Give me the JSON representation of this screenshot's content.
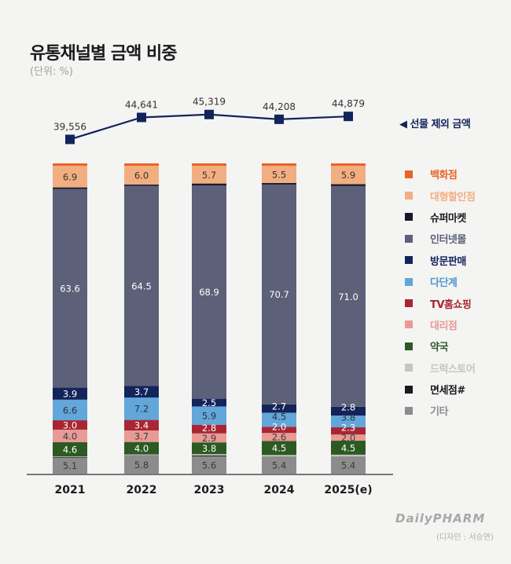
{
  "chart_data": {
    "type": "bar",
    "stacked": true,
    "title": "유통채널별 금액 비중",
    "subtitle": "(단위: %)",
    "categories": [
      "2021",
      "2022",
      "2023",
      "2024",
      "2025(e)"
    ],
    "series": [
      {
        "name": "기타",
        "color": "#8c8c8c",
        "label_color": "#3a3a3a",
        "values": [
          5.1,
          5.8,
          5.6,
          5.4,
          5.4
        ],
        "labeled": true
      },
      {
        "name": "면세점#",
        "color": "#1a1a1a",
        "label_color": "#1a1a1a",
        "values": [
          0.2,
          0.1,
          0.3,
          0.1,
          0.1
        ],
        "labeled": false
      },
      {
        "name": "드럭스토어",
        "color": "#c4c4c4",
        "label_color": "#bdbdbd",
        "values": [
          0.2,
          0.3,
          0.4,
          0.5,
          0.6
        ],
        "labeled": false
      },
      {
        "name": "약국",
        "color": "#2c5a22",
        "label_color": "#ffffff",
        "values": [
          4.6,
          4.0,
          3.8,
          4.5,
          4.5
        ],
        "labeled": true
      },
      {
        "name": "대리점",
        "color": "#e89a96",
        "label_color": "#3a3a3a",
        "values": [
          4.0,
          3.7,
          2.9,
          2.6,
          2.0
        ],
        "labeled": true
      },
      {
        "name": "TV홈쇼핑",
        "color": "#a82634",
        "label_color": "#ffffff",
        "values": [
          3.0,
          3.4,
          2.8,
          2.0,
          2.3
        ],
        "labeled": true
      },
      {
        "name": "다단계",
        "color": "#62a6da",
        "label_color": "#2a3040",
        "values": [
          6.6,
          7.2,
          5.9,
          4.5,
          3.8
        ],
        "labeled": true
      },
      {
        "name": "방문판매",
        "color": "#13245a",
        "label_color": "#ffffff",
        "values": [
          3.9,
          3.7,
          2.5,
          2.7,
          2.8
        ],
        "labeled": true
      },
      {
        "name": "인터넷몰",
        "color": "#5c6079",
        "label_color": "#ffffff",
        "values": [
          63.6,
          64.5,
          68.9,
          70.7,
          71.0
        ],
        "labeled": true
      },
      {
        "name": "슈퍼마켓",
        "color": "#171a2e",
        "label_color": "#171a2e",
        "values": [
          0.5,
          0.4,
          0.6,
          0.5,
          0.6
        ],
        "labeled": false
      },
      {
        "name": "대형할인점",
        "color": "#f2ae80",
        "label_color": "#333333",
        "values": [
          6.9,
          6.0,
          5.7,
          5.5,
          5.9
        ],
        "labeled": true
      },
      {
        "name": "백화점",
        "color": "#e86424",
        "label_color": "#e86424",
        "values": [
          0.8,
          0.8,
          0.8,
          0.8,
          0.8
        ],
        "labeled": false
      }
    ],
    "legend_order": [
      "백화점",
      "대형할인점",
      "슈퍼마켓",
      "인터넷몰",
      "방문판매",
      "다단계",
      "TV홈쇼핑",
      "대리점",
      "약국",
      "드럭스토어",
      "면세점#",
      "기타"
    ],
    "line_series": {
      "name": "선물 제외 금액",
      "color": "#13245a",
      "values": [
        39556,
        44641,
        45319,
        44208,
        44879
      ],
      "labels": [
        "39,556",
        "44,641",
        "45,319",
        "44,208",
        "44,879"
      ]
    },
    "ylim": [
      0,
      100
    ],
    "grid": false,
    "legend_position": "right"
  },
  "header": {
    "title": "유통채널별 금액 비중",
    "unit": "(단위: %)"
  },
  "line_legend": {
    "marker": "◀",
    "label": "선물 제외 금액"
  },
  "footer": {
    "brand": "DailyPHARM",
    "credit": "(디자인 : 서승연)"
  }
}
